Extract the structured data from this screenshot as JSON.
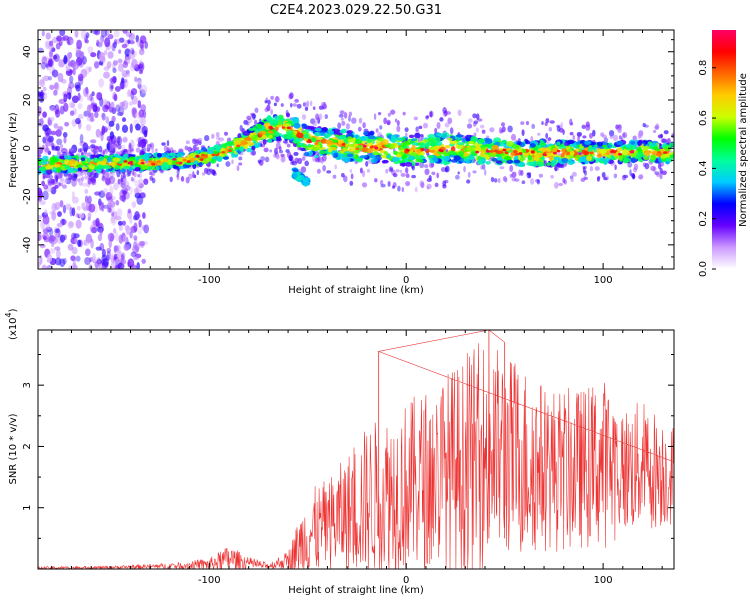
{
  "title": "C2E4.2023.029.22.50.G31",
  "chart_data": [
    {
      "type": "heatmap",
      "xlabel": "Height of straight line (km)",
      "ylabel": "Frequency (Hz)",
      "xlim": [
        -187,
        136
      ],
      "ylim": [
        -50,
        49
      ],
      "xticks": [
        -100,
        0,
        100
      ],
      "yticks": [
        -40,
        -20,
        0,
        20,
        40
      ],
      "xtick_labels": [
        "-100",
        "0",
        "100"
      ],
      "ytick_labels": [
        "-40",
        "-20",
        "0",
        "20",
        "40"
      ],
      "colorbar": {
        "label": "Normalized spectral amplitude",
        "range": [
          0,
          0.95
        ],
        "ticks": [
          0.0,
          0.2,
          0.4,
          0.6,
          0.8
        ],
        "tick_labels": [
          "0.0",
          "0.2",
          "0.4",
          "0.6",
          "0.8"
        ],
        "colormap": [
          "#ffffff",
          "#cc99ff",
          "#6600ff",
          "#0000ff",
          "#00ccff",
          "#00ff99",
          "#00ff00",
          "#ccff00",
          "#ffcc00",
          "#ff6600",
          "#ff0000",
          "#ff0066"
        ]
      },
      "ridge": {
        "x": [
          -187,
          -140,
          -110,
          -95,
          -80,
          -70,
          -60,
          -50,
          -30,
          -10,
          0,
          20,
          40,
          60,
          80,
          100,
          120,
          136
        ],
        "y": [
          -7,
          -6,
          -5,
          -2,
          3,
          8,
          9,
          3,
          1,
          0,
          -1,
          0,
          -1,
          -2,
          -2,
          -2,
          -1,
          -2
        ],
        "width": [
          3,
          3,
          3,
          3,
          4,
          5,
          5,
          6,
          6,
          6,
          6,
          6,
          5,
          5,
          5,
          4,
          4,
          4
        ]
      },
      "secondary_feature": {
        "x": [
          -57,
          -50
        ],
        "y": [
          -10,
          -14
        ]
      },
      "grid": false
    },
    {
      "type": "line",
      "xlabel": "Height of straight line (km)",
      "ylabel": "SNR (10 * v/v)",
      "multiplier": "(x10",
      "multiplier_exp": "4",
      "multiplier_close": ")",
      "xlim": [
        -187,
        136
      ],
      "ylim": [
        0,
        3.9
      ],
      "xticks": [
        -100,
        0,
        100
      ],
      "yticks": [
        1,
        2,
        3
      ],
      "xtick_labels": [
        "-100",
        "0",
        "100"
      ],
      "ytick_labels": [
        "1",
        "2",
        "3"
      ],
      "color": "#ee3333",
      "envelope": {
        "x": [
          -187,
          -150,
          -120,
          -100,
          -90,
          -80,
          -70,
          -60,
          -50,
          -40,
          -30,
          -20,
          -10,
          0,
          10,
          20,
          30,
          40,
          50,
          60,
          70,
          80,
          90,
          100,
          110,
          120,
          136
        ],
        "mean": [
          0.01,
          0.02,
          0.03,
          0.05,
          0.1,
          0.06,
          0.03,
          0.1,
          0.35,
          0.5,
          0.6,
          0.75,
          0.85,
          0.9,
          1.0,
          1.1,
          1.15,
          1.3,
          1.35,
          1.3,
          1.25,
          1.2,
          1.25,
          1.3,
          1.3,
          1.35,
          1.3
        ],
        "max": [
          0.04,
          0.05,
          0.1,
          0.18,
          0.4,
          0.2,
          0.1,
          0.3,
          1.3,
          1.5,
          1.9,
          2.4,
          2.6,
          2.8,
          3.0,
          3.3,
          3.5,
          3.9,
          3.6,
          3.4,
          3.1,
          3.0,
          3.0,
          3.2,
          2.7,
          2.8,
          2.4
        ]
      },
      "spikes": [
        {
          "x": -14,
          "y": 3.55
        },
        {
          "x": 42,
          "y": 3.9
        },
        {
          "x": 50,
          "y": 3.7
        }
      ],
      "grid": false
    }
  ]
}
